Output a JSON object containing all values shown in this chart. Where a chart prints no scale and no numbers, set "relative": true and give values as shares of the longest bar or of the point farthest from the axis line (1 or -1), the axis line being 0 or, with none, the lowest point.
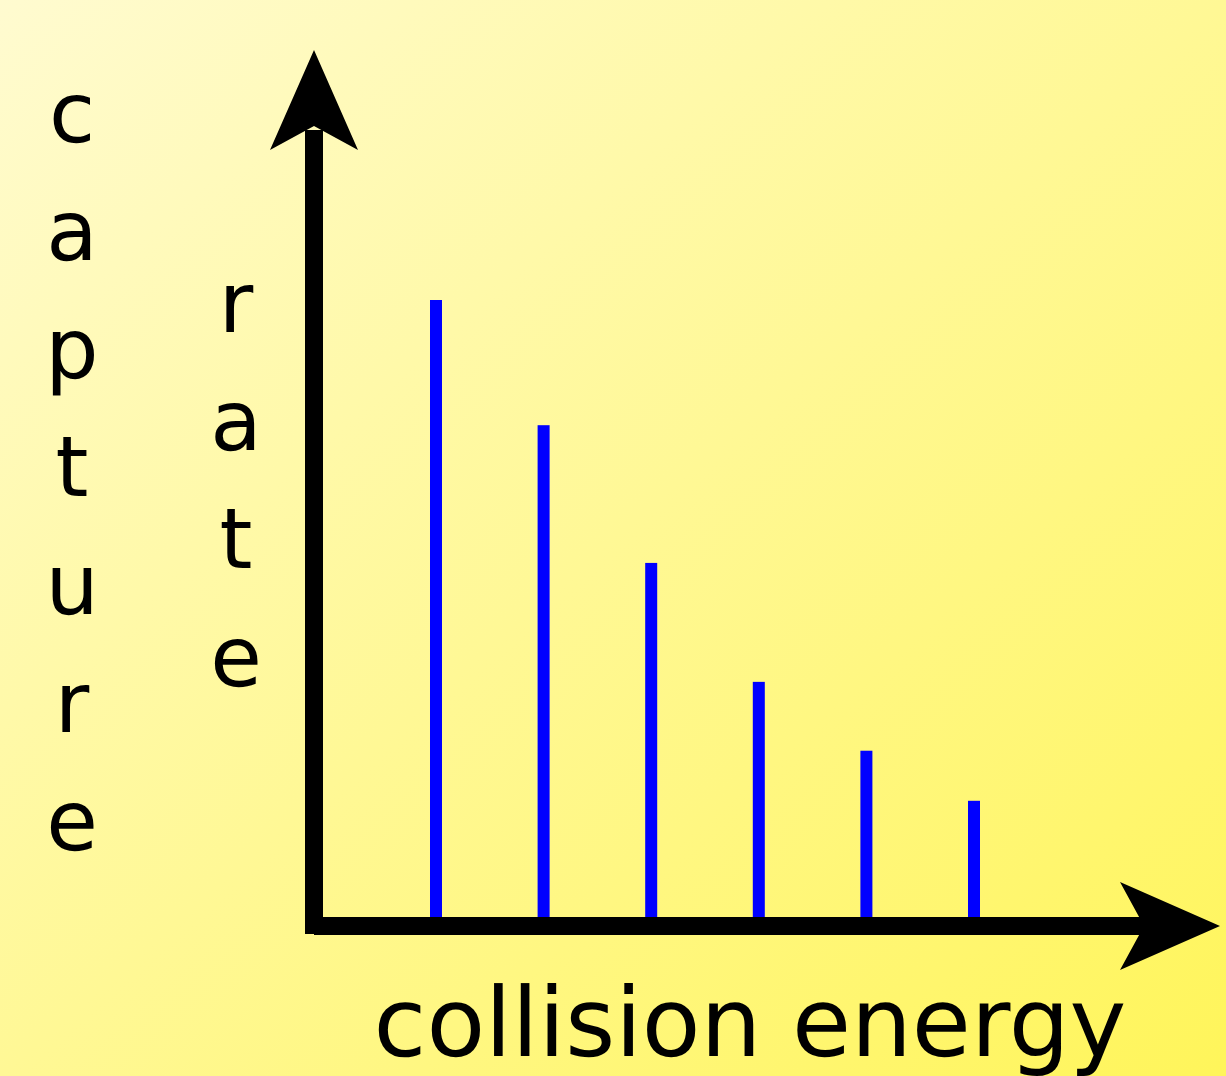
{
  "chart_data": {
    "type": "bar",
    "relative": true,
    "xlabel": "collision energy",
    "ylabel": "capture rate",
    "categories": [
      null,
      null,
      null,
      null,
      null,
      null
    ],
    "values": [
      1,
      0.8,
      0.58,
      0.39,
      0.28,
      0.2
    ],
    "color": "#0000ff"
  }
}
